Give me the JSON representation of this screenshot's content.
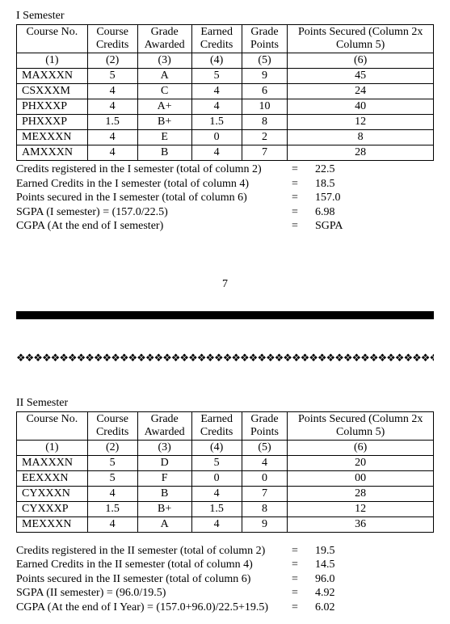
{
  "page_number": "7",
  "table_headers": {
    "h1": "Course No.",
    "h2": "Course Credits",
    "h3": "Grade Awarded",
    "h4": "Earned Credits",
    "h5": "Grade Points",
    "h6": "Points Secured  (Column 2x Column 5)",
    "n1": "(1)",
    "n2": "(2)",
    "n3": "(3)",
    "n4": "(4)",
    "n5": "(5)",
    "n6": "(6)"
  },
  "sem1": {
    "title": "I Semester",
    "rows": [
      {
        "c1": "MAXXXN",
        "c2": "5",
        "c3": "A",
        "c4": "5",
        "c5": "9",
        "c6": "45"
      },
      {
        "c1": "CSXXXM",
        "c2": "4",
        "c3": "C",
        "c4": "4",
        "c5": "6",
        "c6": "24"
      },
      {
        "c1": "PHXXXP",
        "c2": "4",
        "c3": "A+",
        "c4": "4",
        "c5": "10",
        "c6": "40"
      },
      {
        "c1": "PHXXXP",
        "c2": "1.5",
        "c3": "B+",
        "c4": "1.5",
        "c5": "8",
        "c6": "12"
      },
      {
        "c1": "MEXXXN",
        "c2": "4",
        "c3": "E",
        "c4": "0",
        "c5": "2",
        "c6": "8"
      },
      {
        "c1": "AMXXXN",
        "c2": "4",
        "c3": "B",
        "c4": "4",
        "c5": "7",
        "c6": "28"
      }
    ],
    "summary": [
      {
        "label": "Credits registered in the I semester (total of column 2)",
        "eq": "=",
        "val": "22.5"
      },
      {
        "label": "Earned Credits in the I semester (total of column 4)",
        "eq": "=",
        "val": "18.5"
      },
      {
        "label": "Points secured in the I semester (total of column 6)",
        "eq": "=",
        "val": "157.0"
      },
      {
        "label": "SGPA (I semester) = (157.0/22.5)",
        "eq": "=",
        "val": "6.98"
      },
      {
        "label": "CGPA (At the end of I semester)",
        "eq": "=",
        "val": "SGPA"
      }
    ]
  },
  "sem2": {
    "title": "II Semester",
    "rows": [
      {
        "c1": "MAXXXN",
        "c2": "5",
        "c3": "D",
        "c4": "5",
        "c5": "4",
        "c6": "20"
      },
      {
        "c1": "EEXXXN",
        "c2": "5",
        "c3": "F",
        "c4": "0",
        "c5": "0",
        "c6": "00"
      },
      {
        "c1": "CYXXXN",
        "c2": "4",
        "c3": "B",
        "c4": "4",
        "c5": "7",
        "c6": "28"
      },
      {
        "c1": "CYXXXP",
        "c2": "1.5",
        "c3": "B+",
        "c4": "1.5",
        "c5": "8",
        "c6": "12"
      },
      {
        "c1": "MEXXXN",
        "c2": "4",
        "c3": "A",
        "c4": "4",
        "c5": "9",
        "c6": "36"
      }
    ],
    "summary": [
      {
        "label": "Credits registered in the II semester (total of column 2)",
        "eq": "=",
        "val": "19.5"
      },
      {
        "label": "Earned Credits in the II semester (total of column 4)",
        "eq": "=",
        "val": "14.5"
      },
      {
        "label": "Points secured in the II semester (total of column 6)",
        "eq": "=",
        "val": "96.0"
      },
      {
        "label": "SGPA (II semester) = (96.0/19.5)",
        "eq": "=",
        "val": "4.92"
      },
      {
        "label": "CGPA (At the end of I Year) = (157.0+96.0)/22.5+19.5)",
        "eq": "=",
        "val": "6.02"
      }
    ]
  },
  "deco_char": "❖"
}
